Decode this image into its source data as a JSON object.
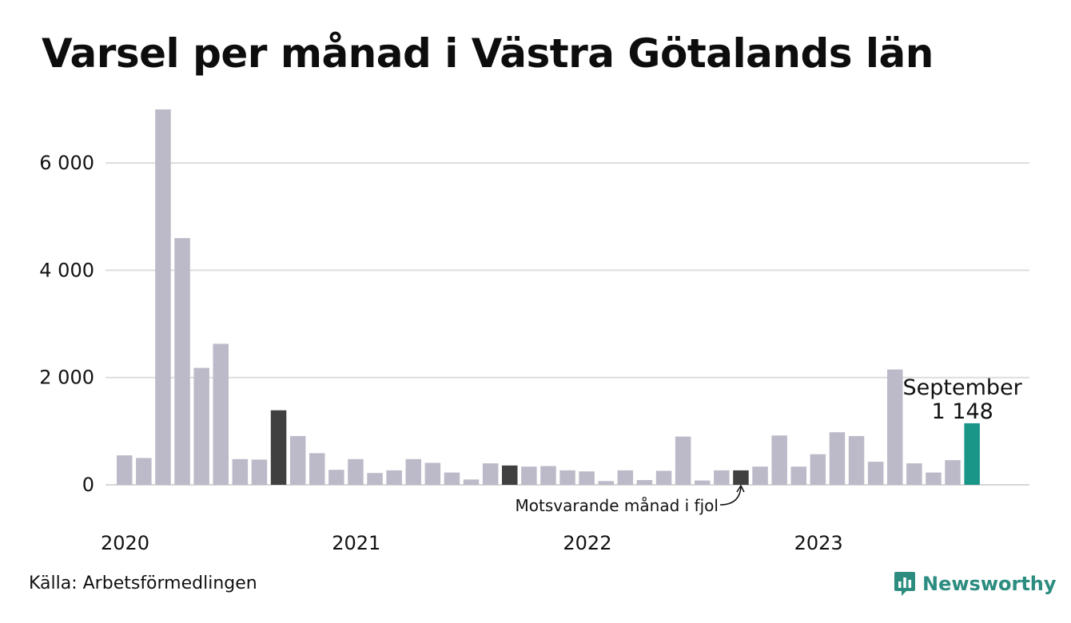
{
  "title": "Varsel per månad i Västra Götalands län",
  "source": "Källa: Arbetsförmedlingen",
  "brand": {
    "name": "Newsworthy",
    "icon": "newsworthy-logo-icon",
    "color": "#2c8c80"
  },
  "colors": {
    "bar": "#bcbac8",
    "highlight_previous": "#404040",
    "current": "#1a9688",
    "grid": "#dddddd"
  },
  "chart_data": {
    "type": "bar",
    "title": "Varsel per månad i Västra Götalands län",
    "xlabel": "",
    "ylabel": "",
    "ylim": [
      0,
      7000
    ],
    "yticks": [
      0,
      2000,
      4000,
      6000
    ],
    "ytick_labels": [
      "0",
      "2 000",
      "4 000",
      "6 000"
    ],
    "year_labels": [
      {
        "label": "2020",
        "index": 0
      },
      {
        "label": "2021",
        "index": 12
      },
      {
        "label": "2022",
        "index": 24
      },
      {
        "label": "2023",
        "index": 36
      }
    ],
    "grid": true,
    "categories": [
      "2020-01",
      "2020-02",
      "2020-03",
      "2020-04",
      "2020-05",
      "2020-06",
      "2020-07",
      "2020-08",
      "2020-09",
      "2020-10",
      "2020-11",
      "2020-12",
      "2021-01",
      "2021-02",
      "2021-03",
      "2021-04",
      "2021-05",
      "2021-06",
      "2021-07",
      "2021-08",
      "2021-09",
      "2021-10",
      "2021-11",
      "2021-12",
      "2022-01",
      "2022-02",
      "2022-03",
      "2022-04",
      "2022-05",
      "2022-06",
      "2022-07",
      "2022-08",
      "2022-09",
      "2022-10",
      "2022-11",
      "2022-12",
      "2023-01",
      "2023-02",
      "2023-03",
      "2023-04",
      "2023-05",
      "2023-06",
      "2023-07",
      "2023-08",
      "2023-09"
    ],
    "values": [
      550,
      500,
      7000,
      4600,
      2180,
      2630,
      480,
      470,
      1390,
      910,
      590,
      280,
      480,
      220,
      270,
      480,
      410,
      230,
      100,
      400,
      360,
      340,
      350,
      270,
      250,
      70,
      270,
      90,
      260,
      900,
      80,
      270,
      270,
      340,
      920,
      340,
      570,
      980,
      910,
      430,
      2150,
      400,
      230,
      460,
      1148
    ],
    "highlight_previous_indices": [
      8,
      20,
      32
    ],
    "current_index": 44,
    "annotations": {
      "current_month": "September",
      "current_value": "1 148",
      "previous_year": "Motsvarande månad i fjol"
    }
  }
}
